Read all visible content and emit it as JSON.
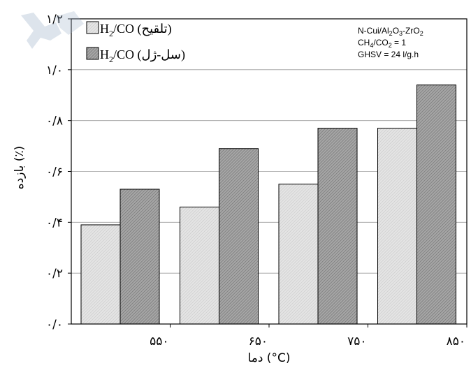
{
  "chart_data": {
    "type": "bar",
    "categories": [
      "۵۵۰",
      "۶۵۰",
      "۷۵۰",
      "۸۵۰"
    ],
    "series": [
      {
        "name": "H2/CO (تلقیح)",
        "name_main": "H",
        "name_sub": "2",
        "name_rest": "/CO (تلقیح)",
        "values": [
          0.39,
          0.46,
          0.55,
          0.77
        ],
        "color": "#d9d9d9"
      },
      {
        "name": "H2/CO (سل-ژل)",
        "name_main": "H",
        "name_sub": "2",
        "name_rest": "/CO (سل-ژل)",
        "values": [
          0.53,
          0.69,
          0.77,
          0.94
        ],
        "color": "#8c8c8c"
      }
    ],
    "ylim": [
      0,
      1.2
    ],
    "yticks": [
      {
        "value": 0,
        "label": "۰/۰"
      },
      {
        "value": 0.2,
        "label": "۰/۲"
      },
      {
        "value": 0.4,
        "label": "۰/۴"
      },
      {
        "value": 0.6,
        "label": "۰/۶"
      },
      {
        "value": 0.8,
        "label": "۰/۸"
      },
      {
        "value": 1.0,
        "label": "۱/۰"
      },
      {
        "value": 1.2,
        "label": "۱/۲"
      }
    ],
    "xlabel": "دما (°C)",
    "ylabel": "بازده (٪)",
    "grid": true,
    "legend": "top-left",
    "annotation_lines": [
      {
        "parts": [
          {
            "t": "N-Cui/Al"
          },
          {
            "t": "2",
            "sub": true
          },
          {
            "t": "O"
          },
          {
            "t": "3",
            "sub": true
          },
          {
            "t": "-ZrO"
          },
          {
            "t": "2",
            "sub": true
          }
        ]
      },
      {
        "parts": [
          {
            "t": "CH"
          },
          {
            "t": "4",
            "sub": true
          },
          {
            "t": "/CO"
          },
          {
            "t": "2",
            "sub": true
          },
          {
            "t": " = 1"
          }
        ]
      },
      {
        "parts": [
          {
            "t": "GHSV = 24 l/g.h"
          }
        ]
      }
    ]
  }
}
